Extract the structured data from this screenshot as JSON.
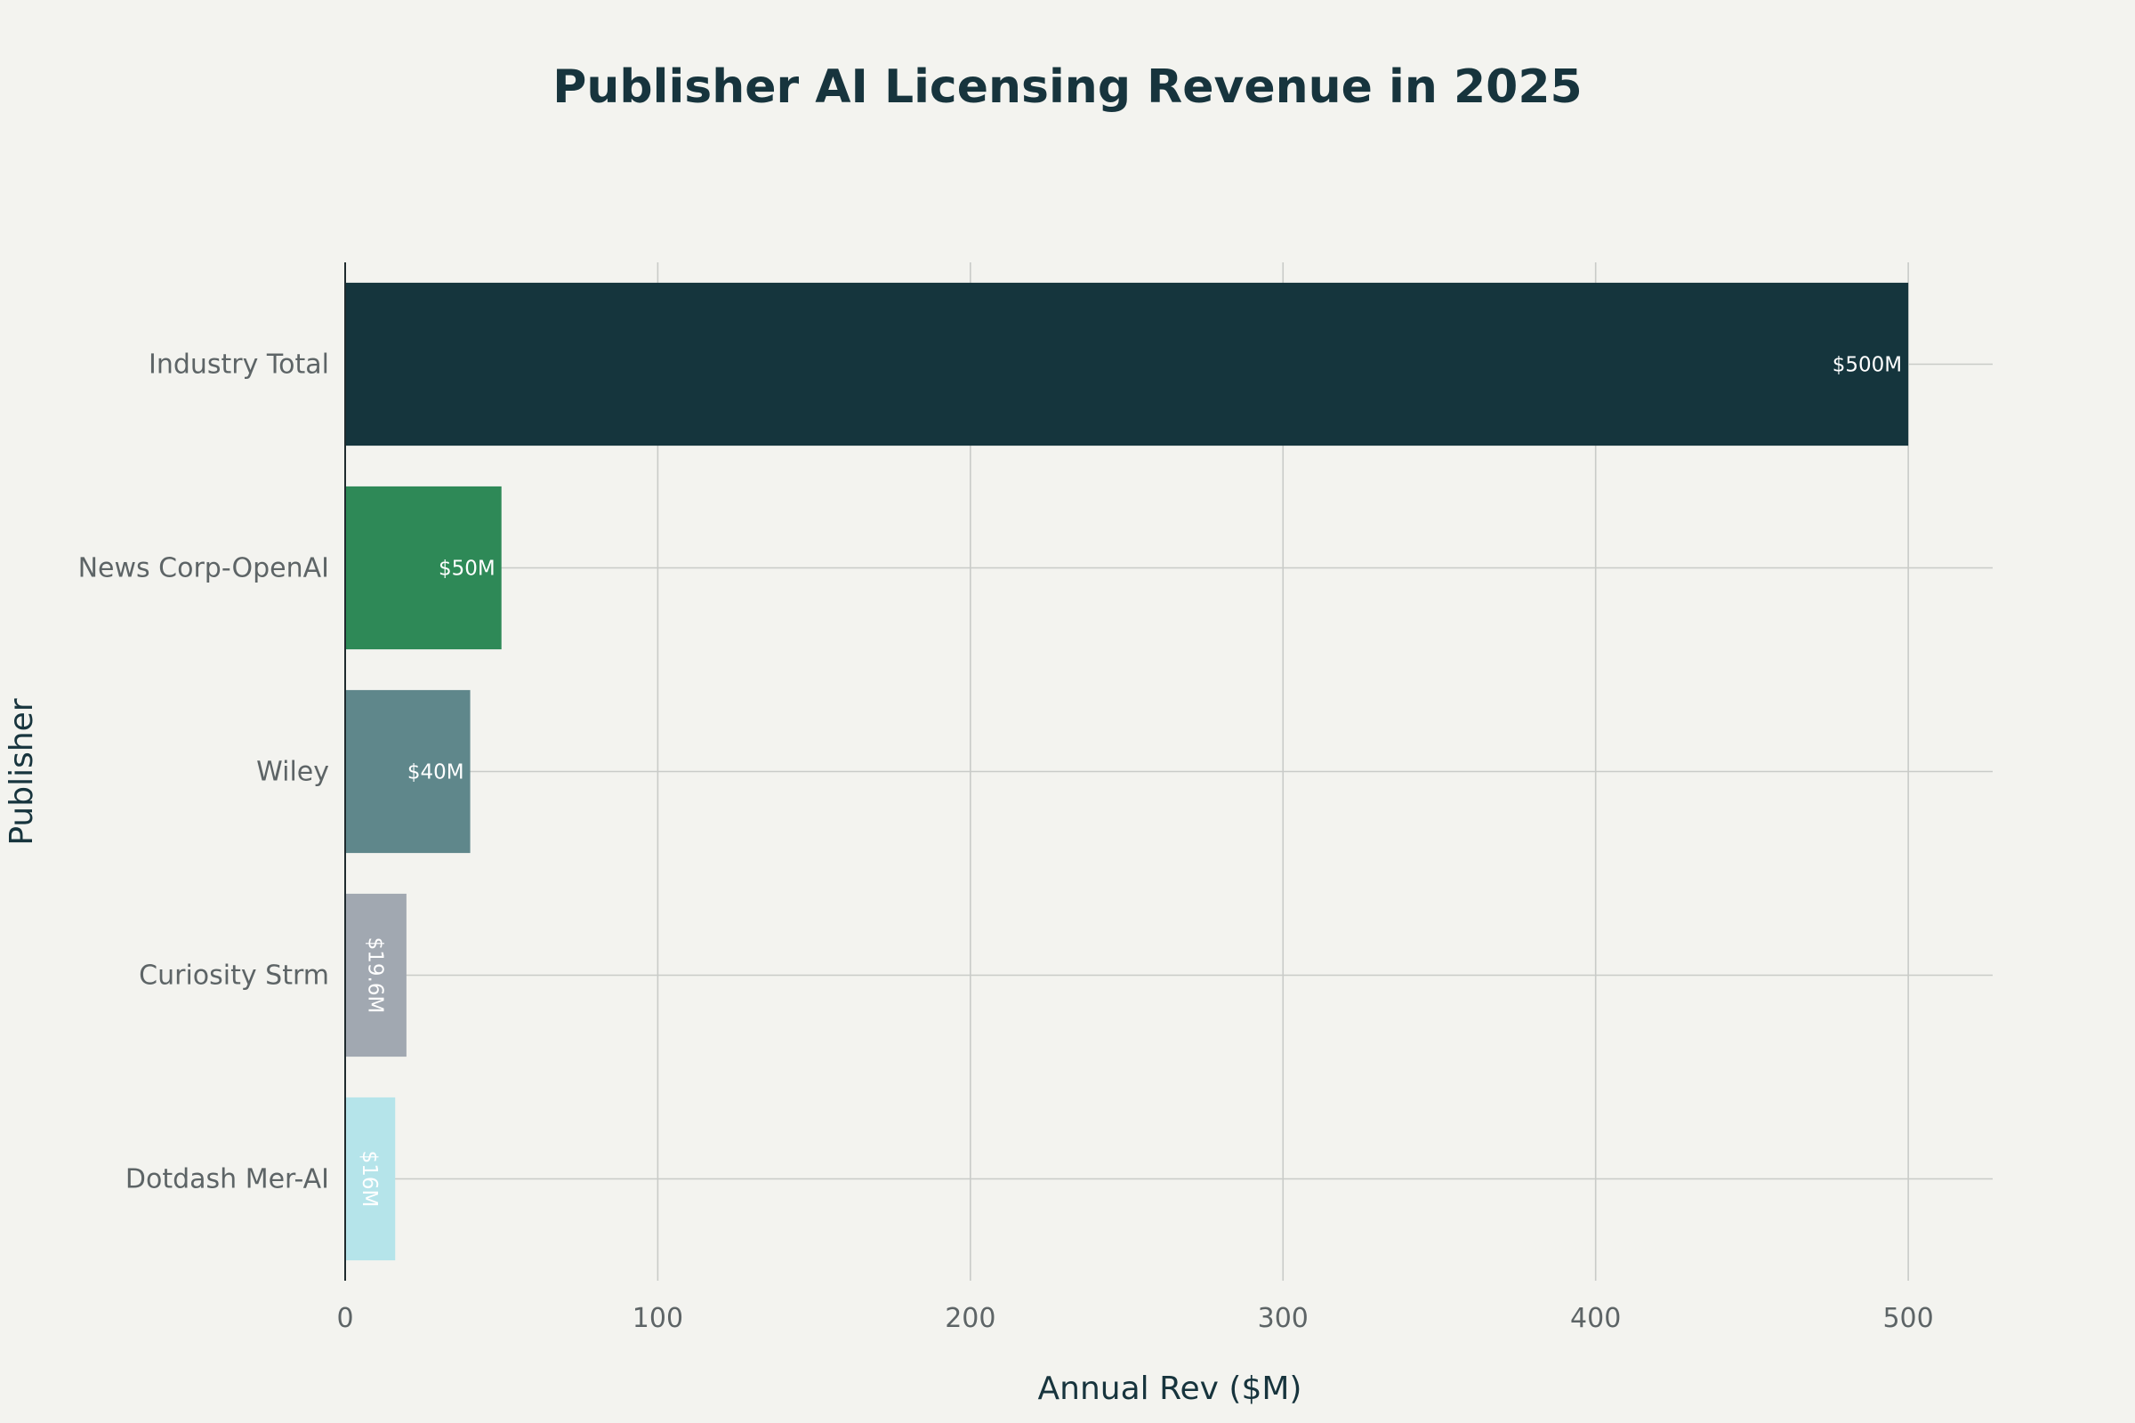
{
  "chart_data": {
    "type": "bar",
    "orientation": "horizontal",
    "title": "Publisher AI Licensing Revenue in 2025",
    "xlabel": "Annual Rev ($M)",
    "ylabel": "Publisher",
    "xlim": [
      0,
      527
    ],
    "xticks": [
      0,
      100,
      200,
      300,
      400,
      500
    ],
    "grid": true,
    "categories": [
      "Industry Total",
      "News Corp-OpenAI",
      "Wiley",
      "Curiosity Strm",
      "Dotdash Mer-AI"
    ],
    "values": [
      500,
      50,
      40,
      19.6,
      16
    ],
    "data_labels": [
      "$500M",
      "$50M",
      "$40M",
      "$19.6M",
      "$16M"
    ],
    "colors": [
      "#15353d",
      "#2e8957",
      "#5f878b",
      "#a1a8b1",
      "#b5e4ea"
    ]
  }
}
